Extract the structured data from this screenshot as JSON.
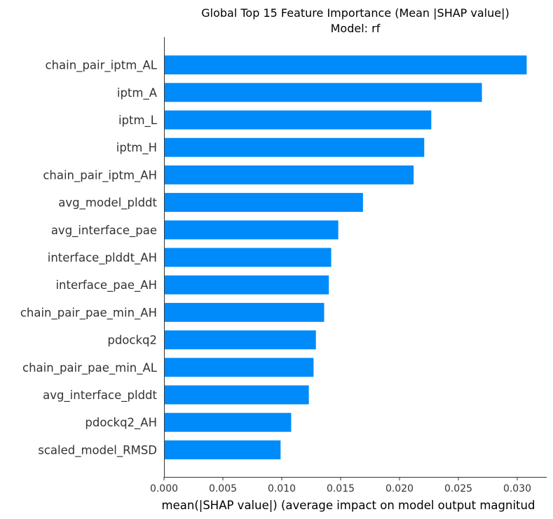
{
  "chart_data": {
    "type": "bar",
    "orientation": "horizontal",
    "title": "Global Top 15 Feature Importance (Mean |SHAP value|)",
    "subtitle": "Model: rf",
    "xlabel": "mean(|SHAP value|) (average impact on model output magnitud",
    "ylabel": "",
    "xlim": [
      0.0,
      0.0325
    ],
    "xticks": [
      "0.000",
      "0.005",
      "0.010",
      "0.015",
      "0.020",
      "0.025",
      "0.030"
    ],
    "xtick_values": [
      0.0,
      0.005,
      0.01,
      0.015,
      0.02,
      0.025,
      0.03
    ],
    "categories": [
      "chain_pair_iptm_AL",
      "iptm_A",
      "iptm_L",
      "iptm_H",
      "chain_pair_iptm_AH",
      "avg_model_plddt",
      "avg_interface_pae",
      "interface_plddt_AH",
      "interface_pae_AH",
      "chain_pair_pae_min_AH",
      "pdockq2",
      "chain_pair_pae_min_AL",
      "avg_interface_plddt",
      "pdockq2_AH",
      "scaled_model_RMSD"
    ],
    "values": [
      0.0308,
      0.027,
      0.0227,
      0.0221,
      0.0212,
      0.0169,
      0.0148,
      0.0142,
      0.014,
      0.0136,
      0.0129,
      0.0127,
      0.0123,
      0.0108,
      0.0099
    ],
    "bar_color": "#008bfb",
    "grid": false,
    "legend": "none"
  }
}
